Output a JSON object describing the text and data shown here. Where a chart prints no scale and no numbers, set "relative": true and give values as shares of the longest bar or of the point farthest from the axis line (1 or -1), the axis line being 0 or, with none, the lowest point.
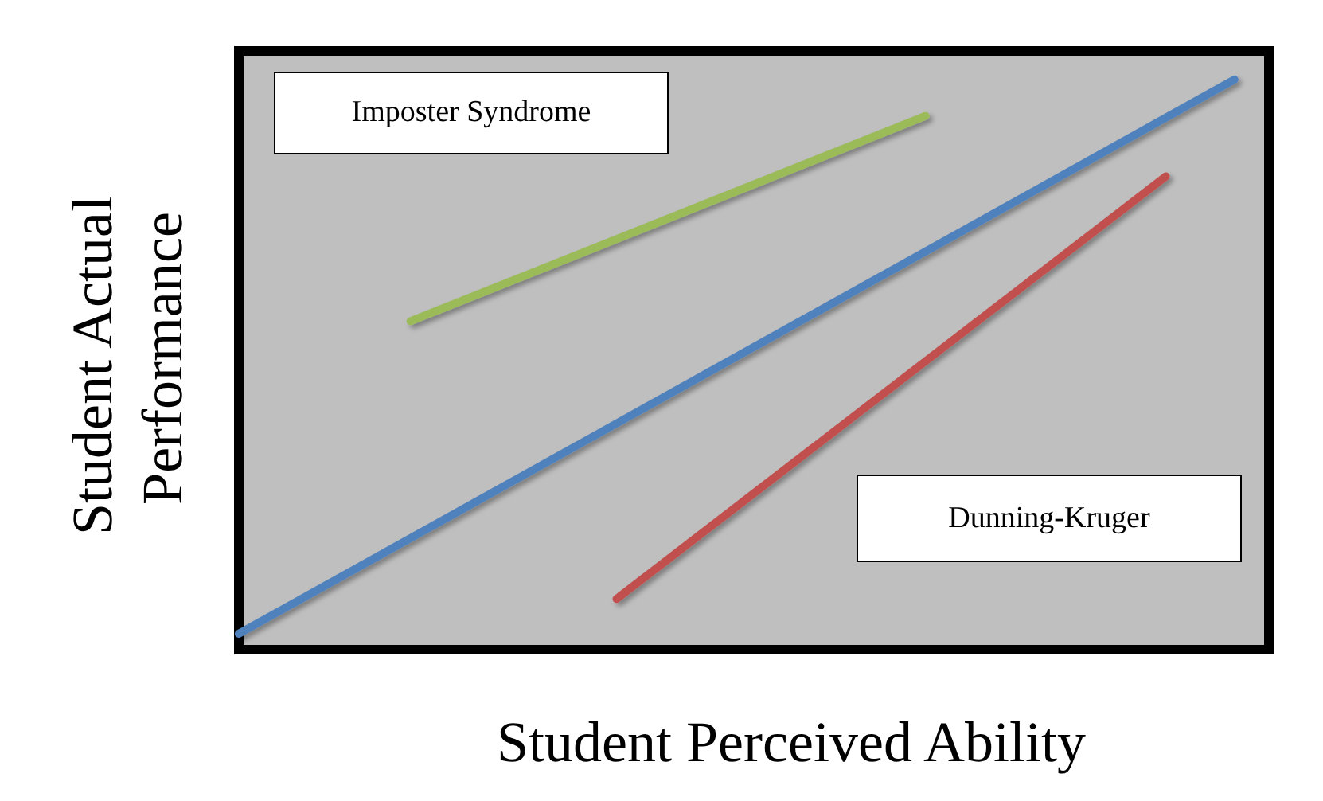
{
  "chart_data": {
    "type": "line",
    "relative": true,
    "xlabel": "Student Perceived Ability",
    "ylabel": "Student Actual Performance",
    "grid": false,
    "marker": "none",
    "line_style": "solid",
    "annotations": [
      "Imposter Syndrome",
      "Dunning-Kruger"
    ],
    "categories": [
      null,
      null,
      null,
      null,
      null,
      null,
      null,
      null,
      null,
      null,
      null,
      null,
      null,
      null,
      null,
      null,
      null,
      null,
      null,
      null,
      null,
      null,
      null,
      null,
      null,
      null,
      null,
      null,
      null,
      null,
      null
    ],
    "series": [
      {
        "color": "#9bbb59",
        "values": [
          null,
          null,
          null,
          null,
          null,
          0.576,
          null,
          null,
          null,
          null,
          null,
          null,
          null,
          null,
          null,
          null,
          null,
          null,
          null,
          null,
          0.936,
          null,
          null,
          null,
          null,
          null,
          null,
          null,
          null,
          null,
          null
        ]
      },
      {
        "color": "#4f81bd",
        "values": [
          0.028,
          null,
          null,
          null,
          null,
          null,
          null,
          null,
          null,
          null,
          null,
          null,
          null,
          null,
          null,
          null,
          null,
          null,
          null,
          null,
          null,
          null,
          null,
          null,
          null,
          null,
          null,
          null,
          null,
          1,
          null
        ]
      },
      {
        "color": "#c0504d",
        "values": [
          null,
          null,
          null,
          null,
          null,
          null,
          null,
          null,
          null,
          null,
          null,
          0.089,
          null,
          null,
          null,
          null,
          null,
          null,
          null,
          null,
          null,
          null,
          null,
          null,
          null,
          null,
          null,
          0.83,
          null,
          null,
          null
        ]
      }
    ]
  }
}
